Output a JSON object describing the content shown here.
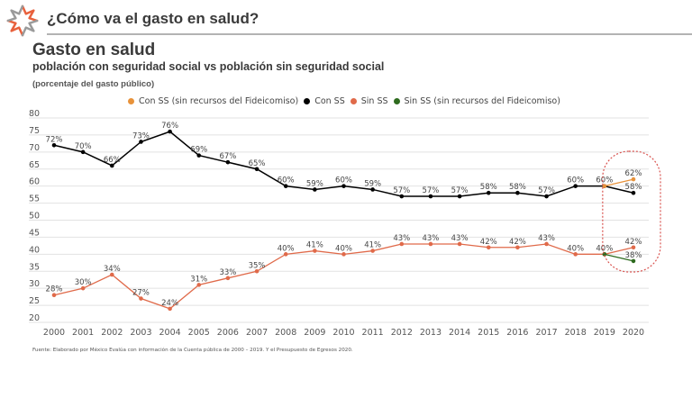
{
  "header": {
    "title": "¿Cómo va el gasto en salud?",
    "logo_icon": "starburst-logo-icon",
    "logo_colors": {
      "primary": "#e8603c",
      "secondary": "#9a9a9a"
    }
  },
  "footer": {
    "source": "Fuente: Elaborado por México Evalúa con información de la Cuenta pública de 2000 – 2019. Y el Presupuesto de Egresos 2020."
  },
  "chart_data": {
    "type": "line",
    "title": "Gasto en salud",
    "subtitle": "población con seguridad social vs población sin seguridad social",
    "unit_label": "(porcentaje del gasto público)",
    "xlabel": "",
    "ylabel": "",
    "ylim": [
      20,
      80
    ],
    "yticks": [
      80,
      75,
      70,
      65,
      60,
      55,
      50,
      45,
      40,
      35,
      30,
      25,
      20
    ],
    "grid": true,
    "legend_position": "top-center",
    "x": [
      "2000",
      "2001",
      "2002",
      "2003",
      "2004",
      "2005",
      "2006",
      "2007",
      "2008",
      "2009",
      "2010",
      "2011",
      "2012",
      "2013",
      "2014",
      "2015",
      "2016",
      "2017",
      "2018",
      "2019",
      "2020"
    ],
    "series": [
      {
        "name": "Con SS (sin recursos del Fideicomiso)",
        "color": "#e8923a",
        "x": [
          "2019",
          "2020"
        ],
        "values": [
          60,
          62
        ],
        "labels": [
          null,
          "62%"
        ]
      },
      {
        "name": "Con SS",
        "color": "#000000",
        "x": [
          "2000",
          "2001",
          "2002",
          "2003",
          "2004",
          "2005",
          "2006",
          "2007",
          "2008",
          "2009",
          "2010",
          "2011",
          "2012",
          "2013",
          "2014",
          "2015",
          "2016",
          "2017",
          "2018",
          "2019",
          "2020"
        ],
        "values": [
          72,
          70,
          66,
          73,
          76,
          69,
          67,
          65,
          60,
          59,
          60,
          59,
          57,
          57,
          57,
          58,
          58,
          57,
          60,
          60,
          58
        ],
        "labels": [
          "72%",
          "70%",
          "66%",
          "73%",
          "76%",
          "69%",
          "67%",
          "65%",
          "60%",
          "59%",
          "60%",
          "59%",
          "57%",
          "57%",
          "57%",
          "58%",
          "58%",
          "57%",
          "60%",
          "60%",
          "58%"
        ]
      },
      {
        "name": "Sin SS",
        "color": "#e06a4a",
        "x": [
          "2000",
          "2001",
          "2002",
          "2003",
          "2004",
          "2005",
          "2006",
          "2007",
          "2008",
          "2009",
          "2010",
          "2011",
          "2012",
          "2013",
          "2014",
          "2015",
          "2016",
          "2017",
          "2018",
          "2019",
          "2020"
        ],
        "values": [
          28,
          30,
          34,
          27,
          24,
          31,
          33,
          35,
          40,
          41,
          40,
          41,
          43,
          43,
          43,
          42,
          42,
          43,
          40,
          40,
          42
        ],
        "labels": [
          "28%",
          "30%",
          "34%",
          "27%",
          "24%",
          "31%",
          "33%",
          "35%",
          "40%",
          "41%",
          "40%",
          "41%",
          "43%",
          "43%",
          "43%",
          "42%",
          "42%",
          "43%",
          "40%",
          "40%",
          "42%"
        ]
      },
      {
        "name": "Sin SS (sin recursos del Fideicomiso)",
        "color": "#2e6b1f",
        "x": [
          "2019",
          "2020"
        ],
        "values": [
          40,
          38
        ],
        "labels": [
          null,
          "38%"
        ]
      }
    ],
    "annotations": [
      {
        "type": "dashed-rounded-highlight",
        "target_x": [
          "2019",
          "2020"
        ],
        "color": "#d9534f"
      }
    ]
  }
}
